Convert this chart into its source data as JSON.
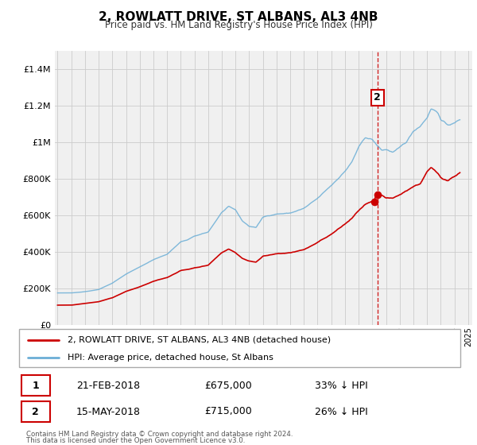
{
  "title": "2, ROWLATT DRIVE, ST ALBANS, AL3 4NB",
  "subtitle": "Price paid vs. HM Land Registry's House Price Index (HPI)",
  "legend_line1": "2, ROWLATT DRIVE, ST ALBANS, AL3 4NB (detached house)",
  "legend_line2": "HPI: Average price, detached house, St Albans",
  "footer1": "Contains HM Land Registry data © Crown copyright and database right 2024.",
  "footer2": "This data is licensed under the Open Government Licence v3.0.",
  "table_rows": [
    {
      "num": "1",
      "date": "21-FEB-2018",
      "price": "£675,000",
      "pct": "33% ↓ HPI"
    },
    {
      "num": "2",
      "date": "15-MAY-2018",
      "price": "£715,000",
      "pct": "26% ↓ HPI"
    }
  ],
  "sale1_year": 2018.13,
  "sale1_price": 675000,
  "sale2_year": 2018.37,
  "sale2_price": 715000,
  "hpi_color": "#6baed6",
  "price_color": "#cc0000",
  "vline_color": "#cc0000",
  "marker_color": "#cc0000",
  "grid_color": "#cccccc",
  "background_color": "#f0f0f0",
  "ylim": [
    0,
    1500000
  ],
  "yticks": [
    0,
    200000,
    400000,
    600000,
    800000,
    1000000,
    1200000,
    1400000
  ],
  "hpi_anchors_x": [
    1995.0,
    1996.0,
    1997.0,
    1998.0,
    1999.0,
    2000.0,
    2001.0,
    2002.0,
    2003.0,
    2004.0,
    2004.5,
    2005.0,
    2006.0,
    2007.0,
    2007.5,
    2008.0,
    2008.5,
    2009.0,
    2009.5,
    2010.0,
    2011.0,
    2012.0,
    2013.0,
    2014.0,
    2015.0,
    2016.0,
    2016.5,
    2017.0,
    2017.5,
    2018.0,
    2018.3,
    2018.7,
    2019.0,
    2019.5,
    2020.0,
    2020.5,
    2021.0,
    2021.5,
    2022.0,
    2022.3,
    2022.8,
    2023.0,
    2023.5,
    2024.0,
    2024.4
  ],
  "hpi_anchors_y": [
    175000,
    175000,
    182000,
    195000,
    230000,
    280000,
    320000,
    360000,
    390000,
    460000,
    470000,
    490000,
    510000,
    620000,
    650000,
    630000,
    570000,
    540000,
    535000,
    590000,
    610000,
    615000,
    640000,
    690000,
    760000,
    840000,
    890000,
    970000,
    1020000,
    1010000,
    980000,
    950000,
    955000,
    940000,
    960000,
    990000,
    1050000,
    1080000,
    1130000,
    1180000,
    1160000,
    1120000,
    1090000,
    1100000,
    1120000
  ],
  "price_anchors_x": [
    1995.0,
    1996.0,
    1997.0,
    1998.0,
    1999.0,
    2000.0,
    2001.0,
    2002.0,
    2003.0,
    2004.0,
    2004.5,
    2005.0,
    2006.0,
    2007.0,
    2007.5,
    2008.0,
    2008.5,
    2009.0,
    2009.5,
    2010.0,
    2011.0,
    2012.0,
    2013.0,
    2014.0,
    2015.0,
    2016.0,
    2016.5,
    2017.0,
    2017.5,
    2018.0,
    2018.13,
    2018.37,
    2018.7,
    2019.0,
    2019.5,
    2020.0,
    2020.5,
    2021.0,
    2021.5,
    2022.0,
    2022.3,
    2022.8,
    2023.0,
    2023.5,
    2024.0,
    2024.4
  ],
  "price_anchors_y": [
    108000,
    108000,
    118000,
    128000,
    150000,
    185000,
    210000,
    240000,
    260000,
    300000,
    305000,
    315000,
    330000,
    400000,
    420000,
    400000,
    370000,
    355000,
    350000,
    385000,
    395000,
    400000,
    418000,
    455000,
    500000,
    555000,
    585000,
    628000,
    660000,
    672000,
    675000,
    715000,
    700000,
    685000,
    680000,
    698000,
    720000,
    745000,
    760000,
    825000,
    845000,
    810000,
    790000,
    775000,
    800000,
    820000
  ]
}
